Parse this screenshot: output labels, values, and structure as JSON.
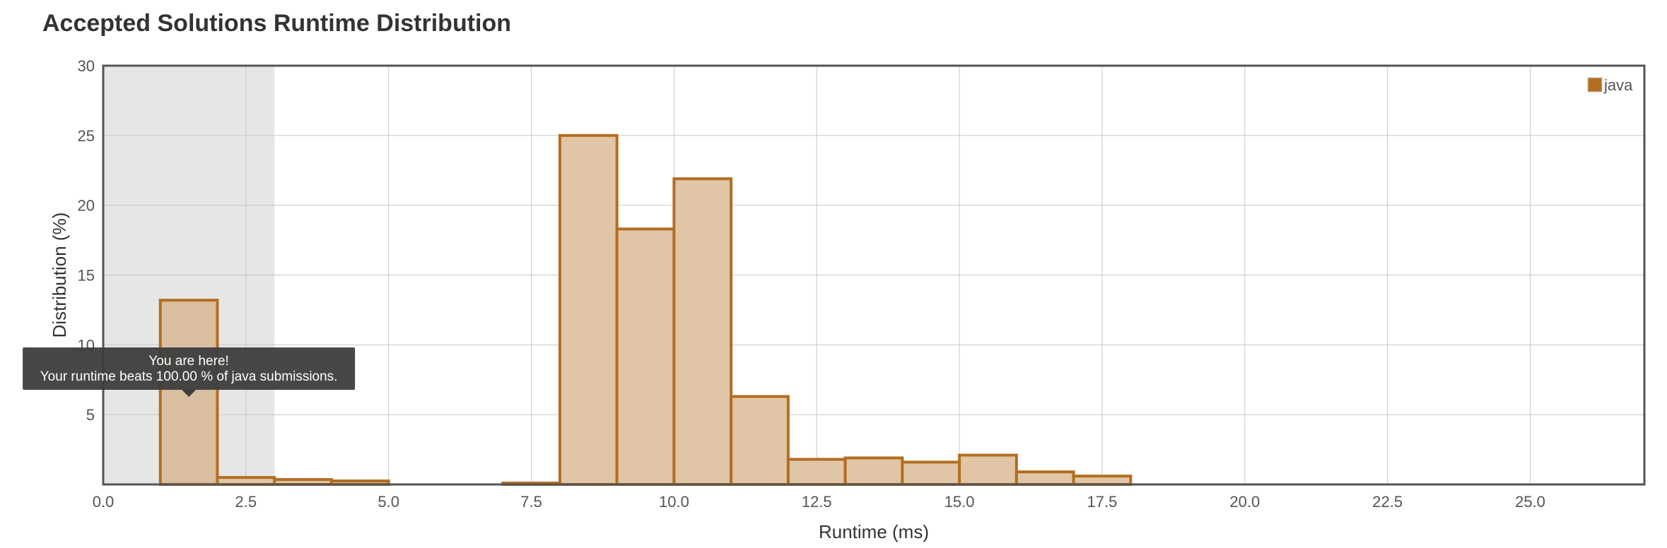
{
  "chart_data": {
    "type": "bar",
    "title": "Accepted Solutions Runtime Distribution",
    "xlabel": "Runtime (ms)",
    "ylabel": "Distribution (%)",
    "xlim": [
      0,
      27
    ],
    "ylim": [
      0,
      30
    ],
    "xticks": [
      "0.0",
      "2.5",
      "5.0",
      "7.5",
      "10.0",
      "12.5",
      "15.0",
      "17.5",
      "20.0",
      "22.5",
      "25.0"
    ],
    "yticks": [
      "5",
      "10",
      "15",
      "20",
      "25",
      "30"
    ],
    "grid": true,
    "legend_position": "top-right",
    "highlight_range": [
      0,
      3
    ],
    "series": [
      {
        "name": "java",
        "color": "#b36e21",
        "fill": "#e0c6a6",
        "bins": [
          {
            "start": 1,
            "end": 2,
            "value": 13.2
          },
          {
            "start": 2,
            "end": 3,
            "value": 0.5
          },
          {
            "start": 3,
            "end": 4,
            "value": 0.35
          },
          {
            "start": 4,
            "end": 5,
            "value": 0.25
          },
          {
            "start": 7,
            "end": 8,
            "value": 0.1
          },
          {
            "start": 8,
            "end": 9,
            "value": 25.0
          },
          {
            "start": 9,
            "end": 10,
            "value": 18.3
          },
          {
            "start": 10,
            "end": 11,
            "value": 21.9
          },
          {
            "start": 11,
            "end": 12,
            "value": 6.3
          },
          {
            "start": 12,
            "end": 13,
            "value": 1.8
          },
          {
            "start": 13,
            "end": 14,
            "value": 1.9
          },
          {
            "start": 14,
            "end": 15,
            "value": 1.6
          },
          {
            "start": 15,
            "end": 16,
            "value": 2.1
          },
          {
            "start": 16,
            "end": 17,
            "value": 0.9
          },
          {
            "start": 17,
            "end": 18,
            "value": 0.6
          }
        ]
      }
    ],
    "tooltip": {
      "line1": "You are here!",
      "line2": "Your runtime beats 100.00 % of java submissions.",
      "bin_index": 0
    }
  }
}
